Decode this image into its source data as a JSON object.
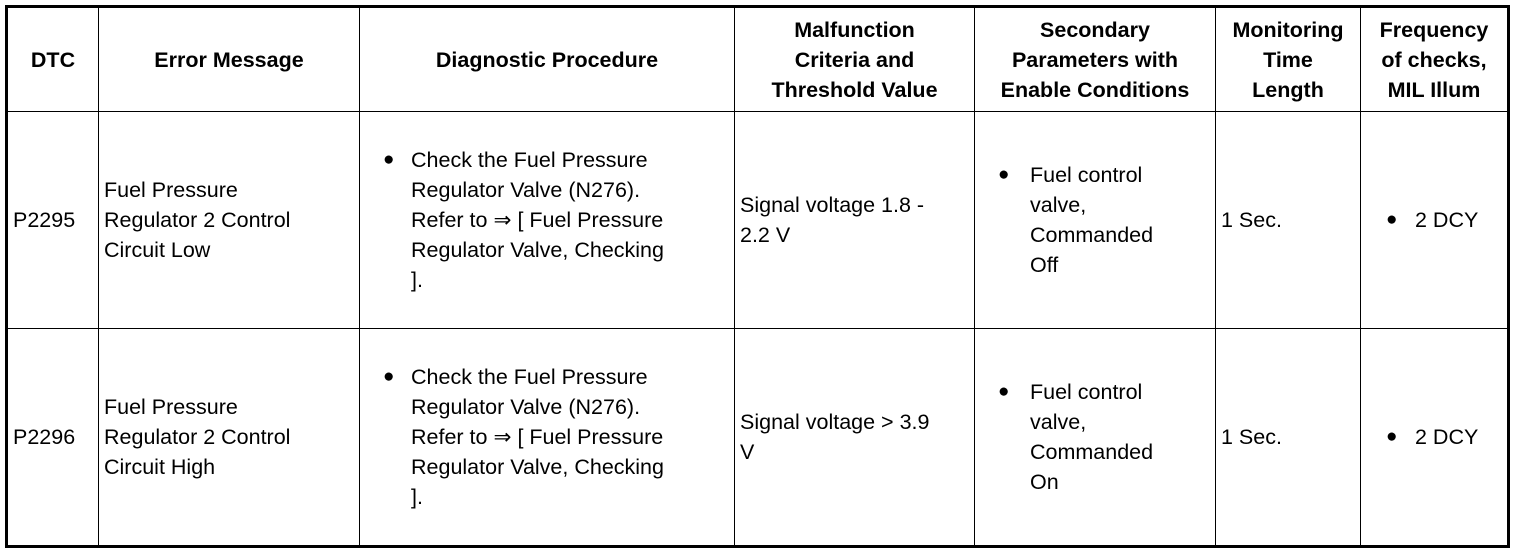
{
  "columns": [
    {
      "line1": "DTC",
      "line2": "",
      "line3": ""
    },
    {
      "line1": "Error Message",
      "line2": "",
      "line3": ""
    },
    {
      "line1": "Diagnostic Procedure",
      "line2": "",
      "line3": ""
    },
    {
      "line1": "Malfunction",
      "line2": "Criteria and",
      "line3": "Threshold Value"
    },
    {
      "line1": "Secondary",
      "line2": "Parameters with",
      "line3": "Enable Conditions"
    },
    {
      "line1": "Monitoring",
      "line2": "Time",
      "line3": "Length"
    },
    {
      "line1": "Frequency",
      "line2": "of checks,",
      "line3": "MIL Illum"
    }
  ],
  "rows": [
    {
      "dtc": "P2295",
      "error_lines": [
        "Fuel Pressure",
        "Regulator 2 Control",
        "Circuit Low"
      ],
      "procedure_lines": [
        "Check the Fuel Pressure",
        "Regulator Valve (N276).",
        "Refer to ⇒ [ Fuel Pressure",
        "Regulator Valve, Checking",
        "]."
      ],
      "criteria_lines": [
        "Signal voltage 1.8 -",
        "2.2 V"
      ],
      "secondary_lines": [
        "Fuel control",
        "valve,",
        "Commanded",
        "Off"
      ],
      "time": "1 Sec.",
      "frequency": "2 DCY"
    },
    {
      "dtc": "P2296",
      "error_lines": [
        "Fuel Pressure",
        "Regulator 2 Control",
        "Circuit High"
      ],
      "procedure_lines": [
        "Check the Fuel Pressure",
        "Regulator Valve (N276).",
        "Refer to ⇒ [ Fuel Pressure",
        "Regulator Valve, Checking",
        "]."
      ],
      "criteria_lines": [
        "Signal voltage > 3.9",
        "V"
      ],
      "secondary_lines": [
        "Fuel control",
        "valve,",
        "Commanded",
        "On"
      ],
      "time": "1 Sec.",
      "frequency": "2 DCY"
    }
  ]
}
